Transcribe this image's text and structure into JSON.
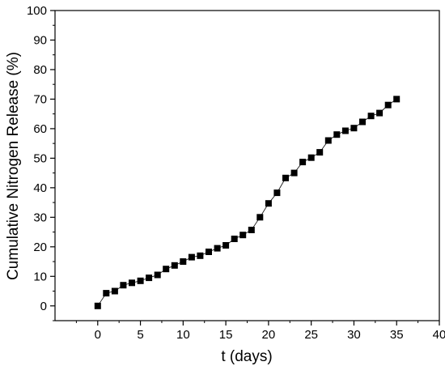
{
  "chart_data": {
    "type": "scatter",
    "xlabel": "t (days)",
    "ylabel": "Cumulative Nitrogen Release (%)",
    "xlim": [
      -5,
      40
    ],
    "ylim": [
      -5,
      100
    ],
    "xticks": [
      0,
      5,
      10,
      15,
      20,
      25,
      30,
      35,
      40
    ],
    "yticks": [
      0,
      10,
      20,
      30,
      40,
      50,
      60,
      70,
      80,
      90,
      100
    ],
    "grid": false,
    "marker": "square",
    "connected": true,
    "color": "#000000",
    "series": [
      {
        "x": [
          0,
          1,
          2,
          3,
          4,
          5,
          6,
          7,
          8,
          9,
          10,
          11,
          12,
          13,
          14,
          15,
          16,
          17,
          18,
          19,
          20,
          21,
          22,
          23,
          24,
          25,
          26,
          27,
          28,
          29,
          30,
          31,
          32,
          33,
          34,
          35
        ],
        "values": [
          0,
          4.3,
          5.0,
          7.0,
          7.8,
          8.5,
          9.5,
          10.5,
          12.5,
          13.7,
          15.0,
          16.5,
          17.0,
          18.3,
          19.5,
          20.5,
          22.7,
          24.0,
          25.7,
          30.0,
          34.7,
          38.3,
          43.3,
          45.0,
          48.7,
          50.2,
          52.0,
          56.0,
          58.0,
          59.3,
          60.2,
          62.3,
          64.3,
          65.3,
          68.0,
          70.0
        ]
      }
    ]
  }
}
